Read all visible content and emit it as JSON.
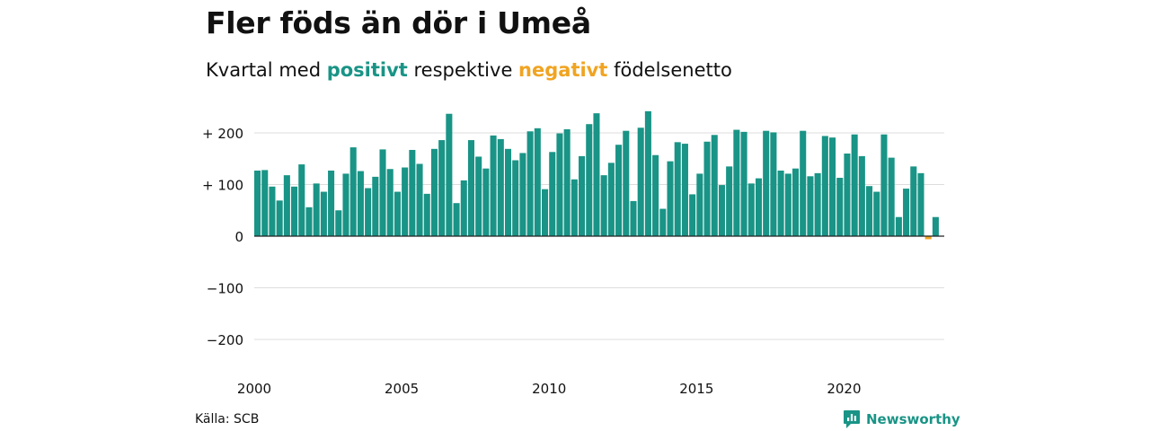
{
  "title": "Fler föds än dör i Umeå",
  "subtitle": {
    "prefix": "Kvartal med ",
    "positive": "positivt",
    "middle": " respektive ",
    "negative": "negativt",
    "suffix": " födelsenetto"
  },
  "source": "Källa: SCB",
  "brand": "Newsworthy",
  "colors": {
    "positive": "#199486",
    "negative": "#f0a422",
    "grid": "#dddddd",
    "zero": "#222222"
  },
  "chart_data": {
    "type": "bar",
    "x_start": 2000,
    "x_step": 0.25,
    "ylim": [
      -220,
      260
    ],
    "x_range": [
      2000,
      2023.4
    ],
    "y_ticks": [
      200,
      100,
      0,
      -100,
      -200
    ],
    "y_tick_labels": [
      "+ 200",
      "+ 100",
      "0",
      "−100",
      "−200"
    ],
    "x_ticks": [
      2000,
      2005,
      2010,
      2015,
      2020
    ],
    "x_tick_labels": [
      "2000",
      "2005",
      "2010",
      "2015",
      "2020"
    ],
    "grid": true,
    "values": [
      127,
      128,
      96,
      69,
      118,
      96,
      139,
      56,
      102,
      86,
      127,
      50,
      121,
      172,
      126,
      93,
      115,
      168,
      130,
      86,
      133,
      167,
      140,
      82,
      169,
      186,
      237,
      64,
      108,
      186,
      154,
      131,
      195,
      188,
      169,
      147,
      161,
      203,
      209,
      91,
      163,
      199,
      207,
      110,
      155,
      217,
      238,
      118,
      142,
      177,
      204,
      68,
      210,
      242,
      157,
      53,
      145,
      182,
      179,
      81,
      121,
      183,
      196,
      99,
      135,
      206,
      202,
      102,
      112,
      204,
      201,
      127,
      121,
      131,
      204,
      116,
      122,
      194,
      191,
      113,
      160,
      197,
      155,
      97,
      86,
      197,
      152,
      37,
      92,
      135,
      122,
      -6,
      37
    ]
  }
}
